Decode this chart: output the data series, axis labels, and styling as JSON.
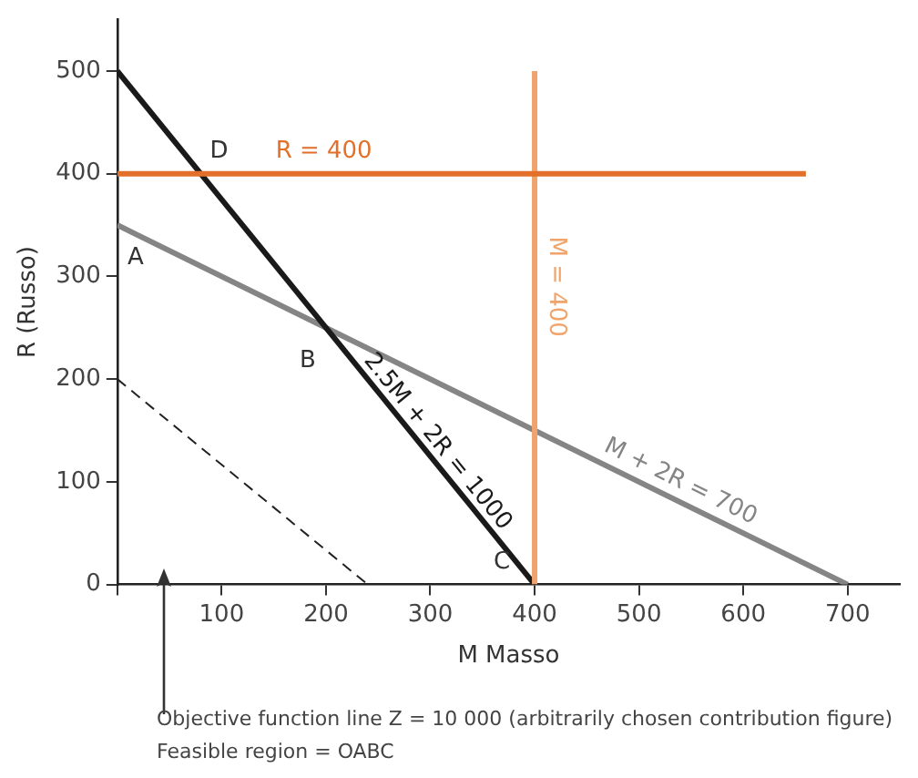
{
  "chart_data": {
    "type": "line",
    "xlabel": "M Masso",
    "ylabel": "R (Russo)",
    "xlim": [
      0,
      750
    ],
    "ylim": [
      0,
      550
    ],
    "xticks": [
      {
        "value": 0,
        "label": null
      },
      100,
      200,
      300,
      400,
      500,
      600,
      700
    ],
    "yticks": [
      0,
      100,
      200,
      300,
      400,
      500
    ],
    "grid": false,
    "legend": false,
    "marker": "none",
    "series": [
      {
        "name": "R = 400",
        "color": "#e2702a",
        "x": [
          0,
          660
        ],
        "values": [
          400,
          400
        ]
      },
      {
        "name": "M = 400",
        "color": "#f0a46c",
        "x": [
          400,
          400
        ],
        "values": [
          0,
          500
        ]
      },
      {
        "name": "2.5M + 2R = 1000",
        "color": "#1a1a1a",
        "x": [
          0,
          400
        ],
        "values": [
          500,
          0
        ]
      },
      {
        "name": "M + 2R = 700",
        "color": "#858585",
        "x": [
          0,
          700
        ],
        "values": [
          350,
          0
        ]
      },
      {
        "color": "#222222",
        "x": [
          0,
          240
        ],
        "values": [
          200,
          0
        ],
        "line_style": "dashed"
      }
    ],
    "annotations": [
      {
        "text": "A",
        "x": 0,
        "y": 350
      },
      {
        "text": "D",
        "x": 80,
        "y": 400
      },
      {
        "text": "B",
        "x": 200,
        "y": 250
      },
      {
        "text": "C",
        "x": 400,
        "y": 0
      },
      "Objective function line Z = 10 000 (arbitrarily chosen contribution figure)",
      "Feasible region = OABC"
    ]
  }
}
